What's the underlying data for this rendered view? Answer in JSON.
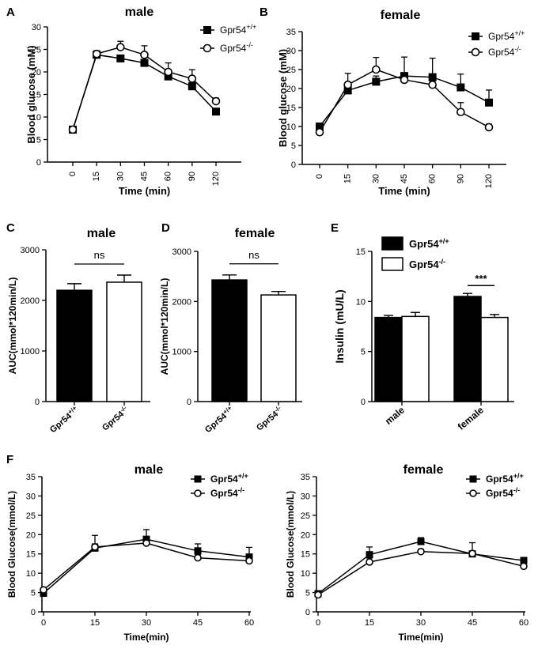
{
  "figure": {
    "panels": [
      {
        "key": "A",
        "label": "A"
      },
      {
        "key": "B",
        "label": "B"
      },
      {
        "key": "C",
        "label": "C"
      },
      {
        "key": "D",
        "label": "D"
      },
      {
        "key": "E",
        "label": "E"
      },
      {
        "key": "F",
        "label": "F"
      }
    ]
  },
  "colors": {
    "wt_fill": "#000000",
    "ko_fill": "#ffffff",
    "stroke": "#000000"
  },
  "chart_data": [
    {
      "id": "A",
      "type": "line",
      "title": "male",
      "xlabel": "Time (min)",
      "ylabel": "Blood glucose (mM)",
      "categories": [
        "0",
        "15",
        "30",
        "45",
        "60",
        "90",
        "120"
      ],
      "yticks": [
        0,
        5,
        10,
        15,
        20,
        25,
        30
      ],
      "ylim": [
        0,
        30
      ],
      "legend_position": "top-right",
      "series": [
        {
          "name": "Gpr54",
          "sup": "+/+",
          "marker": "square-filled",
          "values": [
            7.2,
            23.8,
            23.0,
            22.0,
            19.0,
            16.8,
            11.2
          ],
          "errors": [
            0.4,
            0.8,
            0.7,
            1.2,
            1.0,
            0.8,
            0.6
          ]
        },
        {
          "name": "Gpr54",
          "sup": "-/-",
          "marker": "circle-open",
          "values": [
            7.2,
            24.0,
            25.5,
            23.8,
            20.0,
            18.5,
            13.5
          ],
          "errors": [
            0.5,
            0.7,
            1.3,
            2.0,
            2.0,
            2.0,
            0.7
          ]
        }
      ]
    },
    {
      "id": "B",
      "type": "line",
      "title": "female",
      "xlabel": "Time (min)",
      "ylabel": "Blood glucose (mM)",
      "categories": [
        "0",
        "15",
        "30",
        "45",
        "60",
        "90",
        "120"
      ],
      "yticks": [
        0,
        5,
        10,
        15,
        20,
        25,
        30,
        35
      ],
      "ylim": [
        0,
        35
      ],
      "legend_position": "top-right",
      "series": [
        {
          "name": "Gpr54",
          "sup": "+/+",
          "marker": "square-filled",
          "values": [
            10.0,
            19.5,
            21.8,
            23.3,
            23.0,
            20.3,
            16.3
          ],
          "errors": [
            0.8,
            1.0,
            1.5,
            5.0,
            5.0,
            3.5,
            3.3
          ]
        },
        {
          "name": "Gpr54",
          "sup": "-/-",
          "marker": "circle-open",
          "values": [
            8.5,
            21.0,
            25.0,
            22.3,
            21.0,
            13.8,
            9.8
          ],
          "errors": [
            0.6,
            3.0,
            3.2,
            1.0,
            1.0,
            2.5,
            0.8
          ]
        }
      ]
    },
    {
      "id": "C",
      "type": "bar",
      "title": "male",
      "ylabel": "AUC(mmol*120min/L)",
      "categories": [
        "Gpr54",
        "Gpr54"
      ],
      "category_sups": [
        "+/+",
        "-/-"
      ],
      "values": [
        2200,
        2360
      ],
      "errors": [
        130,
        140
      ],
      "yticks": [
        0,
        1000,
        2000,
        3000
      ],
      "ylim": [
        0,
        3000
      ],
      "annotation": "ns"
    },
    {
      "id": "D",
      "type": "bar",
      "title": "female",
      "ylabel": "AUC(mmol*120min/L)",
      "categories": [
        "Gpr54",
        "Gpr54"
      ],
      "category_sups": [
        "+/+",
        "-/-"
      ],
      "values": [
        2430,
        2130
      ],
      "errors": [
        100,
        70
      ],
      "yticks": [
        0,
        1000,
        2000,
        3000
      ],
      "ylim": [
        0,
        3000
      ],
      "annotation": "ns"
    },
    {
      "id": "E",
      "type": "bar",
      "title": "",
      "ylabel": "Insulin (mU/L)",
      "categories": [
        "male",
        "female"
      ],
      "yticks": [
        0,
        5,
        10,
        15
      ],
      "ylim": [
        0,
        15
      ],
      "legend_position": "top-left",
      "annotation": "***",
      "series": [
        {
          "name": "Gpr54",
          "sup": "+/+",
          "values": [
            8.4,
            10.5
          ],
          "errors": [
            0.2,
            0.3
          ]
        },
        {
          "name": "Gpr54",
          "sup": "-/-",
          "values": [
            8.5,
            8.4
          ],
          "errors": [
            0.4,
            0.3
          ]
        }
      ]
    },
    {
      "id": "F1",
      "type": "line",
      "title": "male",
      "xlabel": "Time(min)",
      "ylabel": "Blood Glucose(mmol/L)",
      "x": [
        0,
        15,
        30,
        45,
        60
      ],
      "yticks": [
        0,
        5,
        10,
        15,
        20,
        25,
        30,
        35
      ],
      "ylim": [
        0,
        35
      ],
      "legend_position": "top-right",
      "series": [
        {
          "name": "Gpr54",
          "sup": "+/+",
          "marker": "square-filled",
          "values": [
            4.8,
            16.5,
            18.8,
            15.8,
            14.2
          ],
          "errors": [
            0.5,
            3.3,
            2.5,
            1.8,
            2.5
          ]
        },
        {
          "name": "Gpr54",
          "sup": "-/-",
          "marker": "circle-open",
          "values": [
            5.7,
            16.8,
            17.8,
            14.0,
            13.2
          ],
          "errors": [
            0.5,
            0.8,
            0.8,
            0.8,
            0.8
          ]
        }
      ]
    },
    {
      "id": "F2",
      "type": "line",
      "title": "female",
      "xlabel": "Time(min)",
      "ylabel": "Blood Glucose(mmol/L)",
      "x": [
        0,
        15,
        30,
        45,
        60
      ],
      "yticks": [
        0,
        5,
        10,
        15,
        20,
        25,
        30,
        35
      ],
      "ylim": [
        0,
        35
      ],
      "legend_position": "top-right",
      "series": [
        {
          "name": "Gpr54",
          "sup": "+/+",
          "marker": "square-filled",
          "values": [
            4.7,
            14.8,
            18.2,
            15.0,
            13.3
          ],
          "errors": [
            0.5,
            2.0,
            1.0,
            0.5,
            0.8
          ]
        },
        {
          "name": "Gpr54",
          "sup": "-/-",
          "marker": "circle-open",
          "values": [
            4.4,
            12.9,
            15.6,
            15.1,
            11.8
          ],
          "errors": [
            0.5,
            1.0,
            0.6,
            2.8,
            0.5
          ]
        }
      ]
    }
  ]
}
